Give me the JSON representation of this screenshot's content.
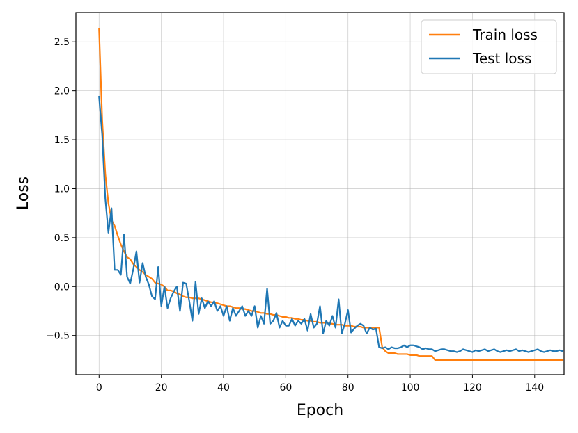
{
  "chart_data": {
    "type": "line",
    "title": "",
    "xlabel": "Epoch",
    "ylabel": "Loss",
    "xlim": [
      -7.45,
      149.45
    ],
    "ylim": [
      -0.9,
      2.8
    ],
    "xticks": [
      0,
      20,
      40,
      60,
      80,
      100,
      120,
      140
    ],
    "xtick_labels": [
      "0",
      "20",
      "40",
      "60",
      "80",
      "100",
      "120",
      "140"
    ],
    "yticks": [
      -0.5,
      0.0,
      0.5,
      1.0,
      1.5,
      2.0,
      2.5
    ],
    "ytick_labels": [
      "−0.5",
      "0.0",
      "0.5",
      "1.0",
      "1.5",
      "2.0",
      "2.5"
    ],
    "grid": true,
    "legend_position": "top-right",
    "series": [
      {
        "name": "Train loss",
        "color": "#ff7f0e",
        "x": [
          0,
          1,
          2,
          3,
          4,
          5,
          6,
          7,
          8,
          9,
          10,
          11,
          12,
          13,
          14,
          15,
          16,
          17,
          18,
          19,
          20,
          21,
          22,
          23,
          24,
          25,
          26,
          27,
          28,
          29,
          30,
          31,
          32,
          33,
          34,
          35,
          36,
          37,
          38,
          39,
          40,
          41,
          42,
          43,
          44,
          45,
          46,
          47,
          48,
          49,
          50,
          51,
          52,
          53,
          54,
          55,
          56,
          57,
          58,
          59,
          60,
          61,
          62,
          63,
          64,
          65,
          66,
          67,
          68,
          69,
          70,
          71,
          72,
          73,
          74,
          75,
          76,
          77,
          78,
          79,
          80,
          81,
          82,
          83,
          84,
          85,
          86,
          87,
          88,
          89,
          90,
          91,
          92,
          93,
          94,
          95,
          96,
          97,
          98,
          99,
          100,
          101,
          102,
          103,
          104,
          105,
          106,
          107,
          108,
          109,
          110,
          111,
          112,
          113,
          114,
          115,
          116,
          117,
          118,
          119,
          120,
          121,
          122,
          123,
          124,
          125,
          126,
          127,
          128,
          129,
          130,
          131,
          132,
          133,
          134,
          135,
          136,
          137,
          138,
          139,
          140,
          141,
          142,
          143,
          144,
          145,
          146,
          147,
          148,
          149
        ],
        "y": [
          2.63,
          1.7,
          1.15,
          0.85,
          0.68,
          0.62,
          0.52,
          0.43,
          0.36,
          0.3,
          0.28,
          0.23,
          0.2,
          0.17,
          0.15,
          0.12,
          0.1,
          0.08,
          0.04,
          0.03,
          0.02,
          0.0,
          -0.04,
          -0.04,
          -0.05,
          -0.07,
          -0.08,
          -0.1,
          -0.11,
          -0.11,
          -0.12,
          -0.12,
          -0.12,
          -0.13,
          -0.14,
          -0.15,
          -0.16,
          -0.16,
          -0.17,
          -0.18,
          -0.19,
          -0.2,
          -0.2,
          -0.21,
          -0.22,
          -0.22,
          -0.23,
          -0.23,
          -0.24,
          -0.25,
          -0.25,
          -0.26,
          -0.27,
          -0.27,
          -0.28,
          -0.28,
          -0.29,
          -0.29,
          -0.3,
          -0.31,
          -0.31,
          -0.32,
          -0.32,
          -0.33,
          -0.33,
          -0.34,
          -0.34,
          -0.35,
          -0.35,
          -0.36,
          -0.36,
          -0.37,
          -0.37,
          -0.37,
          -0.38,
          -0.38,
          -0.39,
          -0.39,
          -0.39,
          -0.4,
          -0.4,
          -0.4,
          -0.41,
          -0.41,
          -0.41,
          -0.42,
          -0.42,
          -0.42,
          -0.42,
          -0.42,
          -0.42,
          -0.62,
          -0.66,
          -0.68,
          -0.68,
          -0.68,
          -0.69,
          -0.69,
          -0.69,
          -0.69,
          -0.7,
          -0.7,
          -0.7,
          -0.71,
          -0.71,
          -0.71,
          -0.71,
          -0.71,
          -0.75,
          -0.75,
          -0.75,
          -0.75,
          -0.75,
          -0.75,
          -0.75,
          -0.75,
          -0.75,
          -0.75,
          -0.75,
          -0.75,
          -0.75,
          -0.75,
          -0.75,
          -0.75,
          -0.75,
          -0.75,
          -0.75,
          -0.75,
          -0.75,
          -0.75,
          -0.75,
          -0.75,
          -0.75,
          -0.75,
          -0.75,
          -0.75,
          -0.75,
          -0.75,
          -0.75,
          -0.75,
          -0.75,
          -0.75,
          -0.75,
          -0.75,
          -0.75,
          -0.75,
          -0.75,
          -0.75,
          -0.75,
          -0.75
        ]
      },
      {
        "name": "Test loss",
        "color": "#1f77b4",
        "x": [
          0,
          1,
          2,
          3,
          4,
          5,
          6,
          7,
          8,
          9,
          10,
          11,
          12,
          13,
          14,
          15,
          16,
          17,
          18,
          19,
          20,
          21,
          22,
          23,
          24,
          25,
          26,
          27,
          28,
          29,
          30,
          31,
          32,
          33,
          34,
          35,
          36,
          37,
          38,
          39,
          40,
          41,
          42,
          43,
          44,
          45,
          46,
          47,
          48,
          49,
          50,
          51,
          52,
          53,
          54,
          55,
          56,
          57,
          58,
          59,
          60,
          61,
          62,
          63,
          64,
          65,
          66,
          67,
          68,
          69,
          70,
          71,
          72,
          73,
          74,
          75,
          76,
          77,
          78,
          79,
          80,
          81,
          82,
          83,
          84,
          85,
          86,
          87,
          88,
          89,
          90,
          91,
          92,
          93,
          94,
          95,
          96,
          97,
          98,
          99,
          100,
          101,
          102,
          103,
          104,
          105,
          106,
          107,
          108,
          109,
          110,
          111,
          112,
          113,
          114,
          115,
          116,
          117,
          118,
          119,
          120,
          121,
          122,
          123,
          124,
          125,
          126,
          127,
          128,
          129,
          130,
          131,
          132,
          133,
          134,
          135,
          136,
          137,
          138,
          139,
          140,
          141,
          142,
          143,
          144,
          145,
          146,
          147,
          148,
          149
        ],
        "y": [
          1.94,
          1.55,
          0.9,
          0.55,
          0.8,
          0.17,
          0.17,
          0.12,
          0.53,
          0.1,
          0.03,
          0.18,
          0.36,
          0.04,
          0.24,
          0.1,
          0.02,
          -0.1,
          -0.13,
          0.2,
          -0.2,
          0.0,
          -0.22,
          -0.12,
          -0.05,
          0.0,
          -0.25,
          0.04,
          0.03,
          -0.15,
          -0.35,
          0.05,
          -0.28,
          -0.12,
          -0.22,
          -0.15,
          -0.2,
          -0.15,
          -0.25,
          -0.2,
          -0.3,
          -0.2,
          -0.35,
          -0.22,
          -0.3,
          -0.25,
          -0.2,
          -0.3,
          -0.25,
          -0.3,
          -0.2,
          -0.42,
          -0.3,
          -0.38,
          -0.02,
          -0.38,
          -0.35,
          -0.27,
          -0.42,
          -0.35,
          -0.4,
          -0.4,
          -0.33,
          -0.4,
          -0.35,
          -0.38,
          -0.33,
          -0.45,
          -0.28,
          -0.42,
          -0.38,
          -0.2,
          -0.48,
          -0.35,
          -0.4,
          -0.3,
          -0.42,
          -0.13,
          -0.48,
          -0.38,
          -0.24,
          -0.47,
          -0.43,
          -0.4,
          -0.38,
          -0.4,
          -0.48,
          -0.42,
          -0.44,
          -0.43,
          -0.62,
          -0.63,
          -0.62,
          -0.64,
          -0.62,
          -0.63,
          -0.63,
          -0.62,
          -0.6,
          -0.62,
          -0.6,
          -0.6,
          -0.61,
          -0.62,
          -0.64,
          -0.63,
          -0.64,
          -0.64,
          -0.66,
          -0.65,
          -0.64,
          -0.64,
          -0.65,
          -0.66,
          -0.66,
          -0.67,
          -0.66,
          -0.64,
          -0.65,
          -0.66,
          -0.67,
          -0.65,
          -0.66,
          -0.65,
          -0.64,
          -0.66,
          -0.65,
          -0.64,
          -0.66,
          -0.67,
          -0.66,
          -0.65,
          -0.66,
          -0.65,
          -0.64,
          -0.66,
          -0.65,
          -0.66,
          -0.67,
          -0.66,
          -0.65,
          -0.64,
          -0.66,
          -0.67,
          -0.66,
          -0.65,
          -0.66,
          -0.66,
          -0.65,
          -0.66
        ]
      }
    ]
  }
}
